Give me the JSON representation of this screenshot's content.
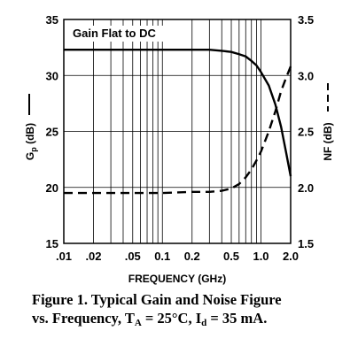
{
  "chart_data": {
    "type": "line",
    "x_scale": "log",
    "xlabel": "FREQUENCY (GHz)",
    "xlim": [
      0.01,
      2.0
    ],
    "x_ticks": [
      0.01,
      0.02,
      0.05,
      0.1,
      0.2,
      0.5,
      1.0,
      2.0
    ],
    "x_tick_labels": [
      ".01",
      ".02",
      ".05",
      "0.1",
      "0.2",
      "0.5",
      "1.0",
      "2.0"
    ],
    "y_left": {
      "ylim": [
        15,
        35
      ],
      "ticks": [
        15,
        20,
        25,
        30,
        35
      ],
      "tick_labels": [
        "15",
        "20",
        "25",
        "30",
        "35"
      ]
    },
    "y_right": {
      "label": "NF (dB)",
      "ylim": [
        1.5,
        3.5
      ],
      "ticks": [
        1.5,
        2.0,
        2.5,
        3.0,
        3.5
      ],
      "tick_labels": [
        "1.5",
        "2.0",
        "2.5",
        "3.0",
        "3.5"
      ]
    },
    "grid": true,
    "annotation": "Gain Flat to DC",
    "series": [
      {
        "name": "Gp",
        "axis": "left",
        "style": "solid",
        "x": [
          0.01,
          0.05,
          0.1,
          0.2,
          0.3,
          0.4,
          0.5,
          0.6,
          0.7,
          0.8,
          0.9,
          1.0,
          1.2,
          1.4,
          1.6,
          1.8,
          2.0
        ],
        "y": [
          32.3,
          32.3,
          32.3,
          32.3,
          32.3,
          32.2,
          32.1,
          31.9,
          31.7,
          31.3,
          30.9,
          30.3,
          29.1,
          27.4,
          25.4,
          23.1,
          21.0
        ]
      },
      {
        "name": "NF",
        "axis": "right",
        "style": "dashed",
        "x": [
          0.01,
          0.05,
          0.1,
          0.2,
          0.3,
          0.4,
          0.5,
          0.6,
          0.7,
          0.8,
          0.9,
          1.0,
          1.2,
          1.4,
          1.6,
          1.8,
          2.0
        ],
        "y": [
          1.95,
          1.95,
          1.95,
          1.96,
          1.96,
          1.97,
          1.99,
          2.03,
          2.09,
          2.16,
          2.24,
          2.32,
          2.5,
          2.68,
          2.86,
          2.98,
          3.08
        ]
      }
    ]
  },
  "caption": {
    "line1": "Figure 1.  Typical Gain and Noise Figure",
    "line2_prefix": "vs. Frequency, T",
    "line2_sub1": "A",
    "line2_mid": " = 25°C, I",
    "line2_sub2": "d",
    "line2_suffix": " = 35 mA."
  },
  "ylabel_left": {
    "main": "G",
    "sub": "p",
    "unit": " (dB)"
  }
}
